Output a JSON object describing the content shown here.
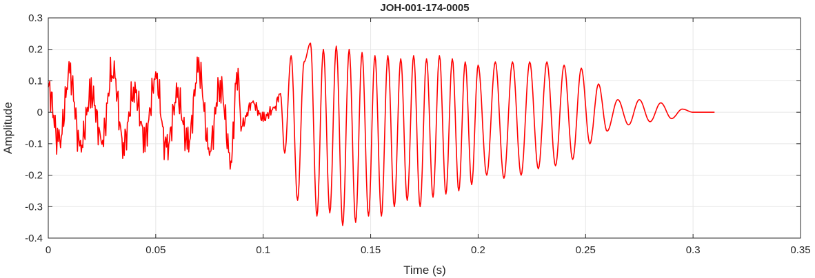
{
  "chart_data": {
    "type": "line",
    "title": "JOH-001-174-0005",
    "xlabel": "Time (s)",
    "ylabel": "Amplitude",
    "xlim": [
      0,
      0.35
    ],
    "ylim": [
      -0.4,
      0.3
    ],
    "xticks": [
      0,
      0.05,
      0.1,
      0.15,
      0.2,
      0.25,
      0.3,
      0.35
    ],
    "xtick_labels": [
      "0",
      "0.05",
      "0.1",
      "0.15",
      "0.2",
      "0.25",
      "0.3",
      "0.35"
    ],
    "yticks": [
      -0.4,
      -0.3,
      -0.2,
      -0.1,
      0,
      0.1,
      0.2,
      0.3
    ],
    "ytick_labels": [
      "-0.4",
      "-0.3",
      "-0.2",
      "-0.1",
      "0",
      "0.1",
      "0.2",
      "0.3"
    ],
    "grid": true,
    "legend": "none",
    "colors": {
      "series": "#ff0000",
      "grid": "#e6e6e6",
      "axis": "#262626"
    },
    "series": [
      {
        "x": [
          0,
          0.005,
          0.01,
          0.015,
          0.02,
          0.025,
          0.03,
          0.035,
          0.04,
          0.045,
          0.05,
          0.055,
          0.06,
          0.065,
          0.07,
          0.075,
          0.08,
          0.085,
          0.088,
          0.09,
          0.095,
          0.1,
          0.105,
          0.108,
          0.11,
          0.113,
          0.116,
          0.119,
          0.122,
          0.125,
          0.128,
          0.131,
          0.134,
          0.137,
          0.14,
          0.143,
          0.146,
          0.149,
          0.152,
          0.155,
          0.158,
          0.161,
          0.164,
          0.167,
          0.17,
          0.173,
          0.176,
          0.179,
          0.182,
          0.185,
          0.188,
          0.191,
          0.194,
          0.197,
          0.2,
          0.204,
          0.208,
          0.212,
          0.216,
          0.22,
          0.224,
          0.228,
          0.232,
          0.236,
          0.24,
          0.244,
          0.248,
          0.252,
          0.256,
          0.26,
          0.265,
          0.27,
          0.275,
          0.28,
          0.285,
          0.29,
          0.295,
          0.3,
          0.305,
          0.31
        ],
        "y": [
          0.08,
          -0.1,
          0.12,
          -0.11,
          0.06,
          -0.09,
          0.14,
          -0.1,
          0.07,
          -0.08,
          0.11,
          -0.12,
          0.05,
          -0.1,
          0.14,
          -0.12,
          0.09,
          -0.15,
          0.13,
          -0.04,
          0.03,
          -0.02,
          0.01,
          0.06,
          -0.13,
          0.18,
          -0.28,
          0.16,
          0.22,
          -0.33,
          0.2,
          -0.32,
          0.21,
          -0.36,
          0.2,
          -0.35,
          0.19,
          -0.33,
          0.18,
          -0.33,
          0.18,
          -0.3,
          0.17,
          -0.28,
          0.18,
          -0.3,
          0.17,
          -0.27,
          0.18,
          -0.26,
          0.17,
          -0.25,
          0.16,
          -0.23,
          0.15,
          -0.2,
          0.16,
          -0.21,
          0.16,
          -0.2,
          0.16,
          -0.18,
          0.16,
          -0.17,
          0.15,
          -0.15,
          0.14,
          -0.1,
          0.09,
          -0.06,
          0.04,
          -0.04,
          0.04,
          -0.03,
          0.03,
          -0.02,
          0.01,
          0.0,
          0.0,
          0.0
        ]
      }
    ]
  }
}
